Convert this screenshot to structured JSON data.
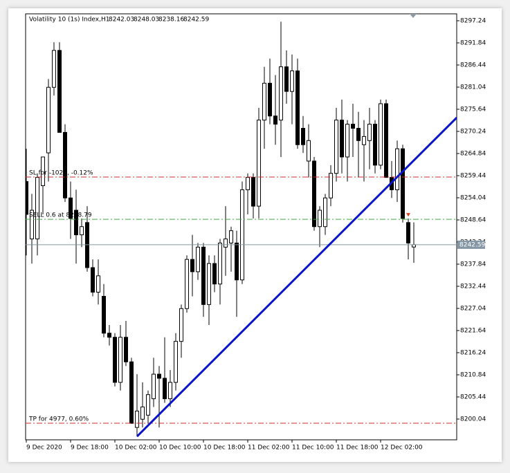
{
  "chart_data": {
    "type": "candlestick",
    "title": "Volatility 10 (1s) Index,H1",
    "categories": [
      "9 Dec 2020",
      null,
      null,
      null,
      null,
      null,
      null,
      null,
      "9 Dec 18:00",
      null,
      null,
      null,
      null,
      null,
      null,
      null,
      "10 Dec 02:00",
      null,
      null,
      null,
      null,
      null,
      null,
      null,
      "10 Dec 10:00",
      null,
      null,
      null,
      null,
      null,
      null,
      null,
      "10 Dec 18:00",
      null,
      null,
      null,
      null,
      null,
      null,
      null,
      "11 Dec 02:00",
      null,
      null,
      null,
      null,
      null,
      null,
      null,
      "11 Dec 10:00",
      null,
      null,
      null,
      null,
      null,
      null,
      null,
      "11 Dec 18:00",
      null,
      null,
      null,
      null,
      null,
      null,
      null,
      "12 Dec 02:00",
      null,
      null,
      null,
      null,
      null,
      null
    ],
    "open": [
      8258,
      8244,
      8244,
      8257,
      8265,
      8281,
      8290,
      8270,
      8254,
      8251,
      8245,
      8248,
      8237,
      8231,
      8230,
      8221,
      8220,
      8209,
      8220,
      8214,
      8198,
      8200,
      8201,
      8205,
      8211,
      8210,
      8205,
      8209,
      8219,
      8227,
      8239,
      8236,
      8242,
      8228,
      8238,
      8233,
      8242,
      8243,
      8243,
      8234,
      8256,
      8259,
      8252,
      8273,
      8282,
      8274,
      8273,
      8286,
      8280,
      8285,
      8271,
      8263,
      8263,
      8247,
      8247,
      8254,
      8260,
      8273,
      8264,
      8272,
      8271,
      8267,
      8268,
      8272,
      8262,
      8277,
      8259,
      8256,
      8266,
      8248,
      8242.03
    ],
    "high": [
      8266,
      8255,
      8260,
      8264,
      8283,
      8292,
      8292,
      8272,
      8258,
      8256,
      8249,
      8252,
      8239,
      8239,
      8233,
      8223,
      8221,
      8223,
      8224,
      8215,
      8211,
      8209,
      8207,
      8215,
      8213,
      8220,
      8212,
      8221,
      8228,
      8240,
      8245,
      8243,
      8243,
      8240,
      8240,
      8244,
      8252,
      8247,
      8246,
      8258,
      8260,
      8260,
      8276,
      8286,
      8288,
      8284,
      8297,
      8290,
      8289,
      8288,
      8274,
      8272,
      8264,
      8252,
      8255,
      8262,
      8276,
      8278,
      8273,
      8277,
      8275,
      8273,
      8276,
      8273,
      8278,
      8278,
      8263,
      8268,
      8267,
      8249,
      8248.03
    ],
    "low": [
      8240,
      8238,
      8240,
      8250,
      8258,
      8279,
      8270,
      8253,
      8244,
      8238,
      8242,
      8236,
      8230,
      8228,
      8220,
      8218,
      8208,
      8207,
      8213,
      8199,
      8196,
      8198,
      8199,
      8203,
      8198,
      8204,
      8203,
      8207,
      8215,
      8226,
      8230,
      8234,
      8225,
      8223,
      8231,
      8228,
      8235,
      8236,
      8225,
      8233,
      8250,
      8249,
      8249,
      8266,
      8272,
      8267,
      8264,
      8277,
      8272,
      8266,
      8265,
      8259,
      8246,
      8242,
      8245,
      8252,
      8258,
      8260,
      8258,
      8264,
      8259,
      8258,
      8261,
      8260,
      8261,
      8259,
      8254,
      8253,
      8248,
      8239,
      8238.16
    ],
    "close": [
      8250,
      8251,
      8259,
      8264,
      8281,
      8290,
      8270,
      8254,
      8249,
      8245,
      8247,
      8237,
      8231,
      8235,
      8221,
      8220,
      8209,
      8220,
      8214,
      8199,
      8202,
      8203,
      8206,
      8211,
      8210,
      8205,
      8209,
      8219,
      8227,
      8239,
      8236,
      8242,
      8228,
      8238,
      8233,
      8243,
      8244,
      8246,
      8234,
      8256,
      8259,
      8252,
      8273,
      8282,
      8274,
      8272,
      8286,
      8280,
      8285,
      8267,
      8267,
      8268,
      8247,
      8251,
      8254,
      8260,
      8273,
      8264,
      8272,
      8271,
      8268,
      8269,
      8272,
      8262,
      8277,
      8259,
      8256,
      8266,
      8249,
      8243,
      8242.59
    ],
    "up_color": "#ffffff",
    "down_color": "#000000",
    "ylim": [
      8194.98,
      8298.93
    ],
    "yticks": [
      8200.04,
      8205.44,
      8210.84,
      8216.24,
      8221.64,
      8227.04,
      8232.44,
      8237.84,
      8243.24,
      8248.64,
      8254.04,
      8259.44,
      8264.84,
      8270.24,
      8275.64,
      8281.04,
      8286.44,
      8291.84,
      8297.24
    ],
    "levels": [
      {
        "label": "SL for -1023, -0.12%",
        "value": 8259.1,
        "color": "#d42a2a"
      },
      {
        "label": "SELL 0.6 at 8248.79",
        "value": 8248.79,
        "color": "#3fae3f"
      },
      {
        "label": "TP for 4977, 0.60%",
        "value": 8199.03,
        "color": "#d42a2a"
      }
    ],
    "price_line_color": "#8597a5",
    "trendline": {
      "color": "#0a14c8",
      "x": [
        20,
        77.75
      ],
      "y": [
        8195.8,
        8273.6
      ]
    }
  }
}
